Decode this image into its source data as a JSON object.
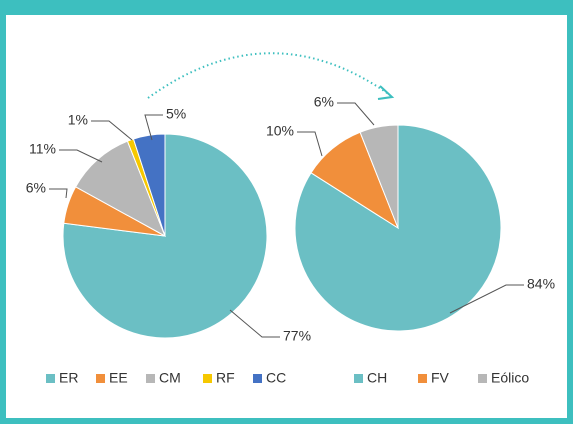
{
  "chart_data": [
    {
      "type": "pie",
      "categories": [
        "ER",
        "EE",
        "CM",
        "RF",
        "CC"
      ],
      "values": [
        77,
        6,
        11,
        1,
        5
      ],
      "value_labels": [
        "77%",
        "6%",
        "11%",
        "1%",
        "5%"
      ],
      "colors": [
        "#6bbfc4",
        "#f18f3b",
        "#b7b7b7",
        "#f6c800",
        "#4472c4"
      ],
      "legend": "bottom"
    },
    {
      "type": "pie",
      "categories": [
        "CH",
        "FV",
        "Eólico"
      ],
      "values": [
        84,
        10,
        6
      ],
      "value_labels": [
        "84%",
        "10%",
        "6%"
      ],
      "colors": [
        "#6bbfc4",
        "#f18f3b",
        "#b7b7b7"
      ],
      "legend": "bottom"
    }
  ]
}
